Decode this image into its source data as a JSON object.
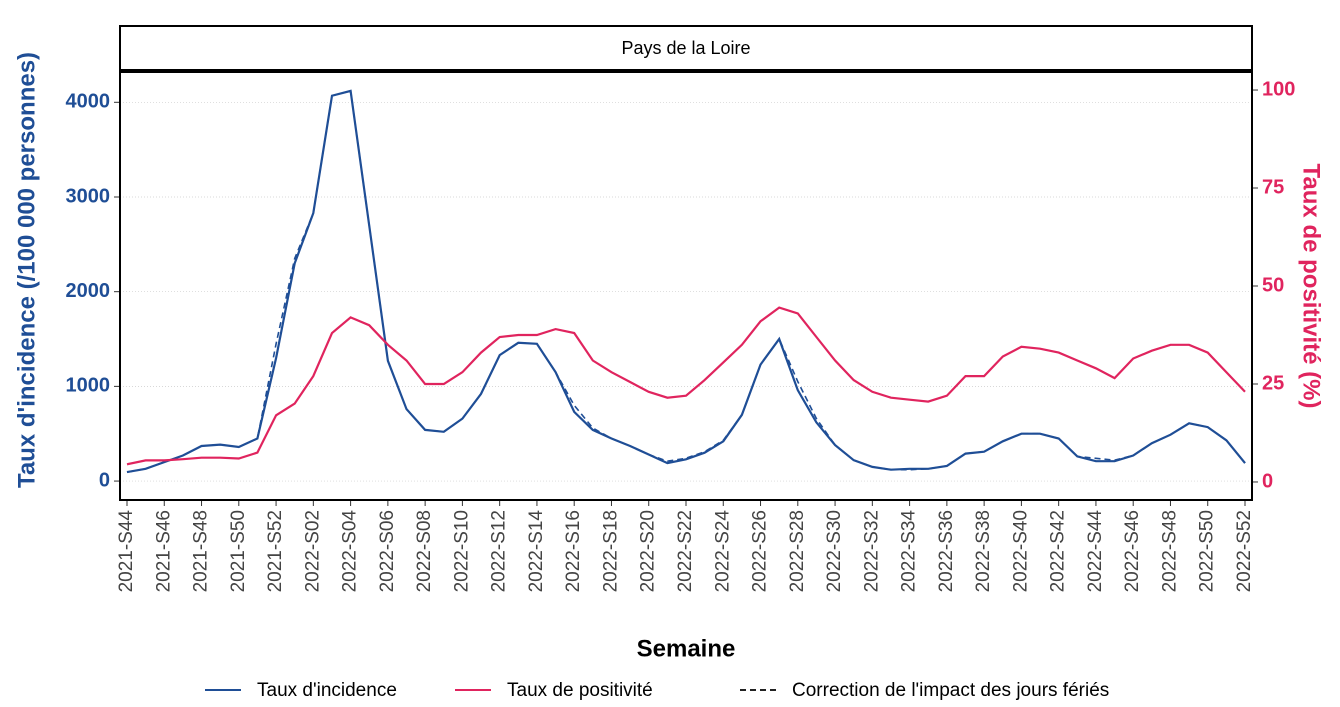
{
  "chart_data": {
    "type": "line",
    "panel_title": "Pays de la Loire",
    "x_label": "Semaine",
    "y_label": "Taux d'incidence (/100 000 personnes)",
    "y2_label": "Taux de positivité (%)",
    "categories": [
      "2021-S44",
      null,
      "2021-S46",
      null,
      "2021-S48",
      null,
      "2021-S50",
      null,
      "2021-S52",
      null,
      "2022-S02",
      null,
      "2022-S04",
      null,
      "2022-S06",
      null,
      "2022-S08",
      null,
      "2022-S10",
      null,
      "2022-S12",
      null,
      "2022-S14",
      null,
      "2022-S16",
      null,
      "2022-S18",
      null,
      "2022-S20",
      null,
      "2022-S22",
      null,
      "2022-S24",
      null,
      "2022-S26",
      null,
      "2022-S28",
      null,
      "2022-S30",
      null,
      "2022-S32",
      null,
      "2022-S34",
      null,
      "2022-S36",
      null,
      "2022-S38",
      null,
      "2022-S40",
      null,
      "2022-S42",
      null,
      "2022-S44",
      null,
      "2022-S46",
      null,
      "2022-S48",
      null,
      "2022-S50",
      null,
      "2022-S52"
    ],
    "ylim": [
      -200,
      4320
    ],
    "yticks": [
      0,
      1000,
      2000,
      3000,
      4000
    ],
    "y2lim": [
      -4.6,
      104.6
    ],
    "y2ticks": [
      0,
      25,
      50,
      75,
      100
    ],
    "grid": true,
    "series": [
      {
        "name": "Taux d'incidence",
        "color": "#1f4e96",
        "axis": "y",
        "dashed": false,
        "values": [
          95,
          130,
          200,
          270,
          370,
          385,
          360,
          450,
          1300,
          2300,
          2830,
          4070,
          4120,
          2700,
          1270,
          760,
          540,
          520,
          660,
          920,
          1330,
          1460,
          1450,
          1150,
          730,
          540,
          450,
          370,
          280,
          190,
          230,
          300,
          420,
          700,
          1230,
          1500,
          960,
          620,
          380,
          220,
          150,
          120,
          130,
          130,
          160,
          290,
          310,
          420,
          500,
          500,
          450,
          260,
          210,
          210,
          270,
          400,
          490,
          610,
          570,
          430,
          190
        ]
      },
      {
        "name": "Taux de positivité",
        "color": "#e0245e",
        "axis": "y2",
        "dashed": false,
        "values": [
          4.5,
          5.5,
          5.5,
          5.8,
          6.2,
          6.2,
          6,
          7.5,
          17,
          20,
          27,
          38,
          42,
          40,
          35,
          31,
          25,
          25,
          28,
          33,
          37,
          37.5,
          37.5,
          39,
          38,
          31,
          28,
          25.5,
          23,
          21.5,
          22,
          26,
          30.5,
          35,
          41,
          44.5,
          43,
          37,
          31,
          26,
          23,
          21.5,
          21,
          20.5,
          22,
          27,
          27,
          32,
          34.5,
          34,
          33,
          31,
          29,
          26.5,
          31.5,
          33.5,
          35,
          35,
          33,
          28,
          23
        ]
      },
      {
        "name": "Correction de l'impact des jours fériés",
        "color": "#1f4e96",
        "axis": "y",
        "dashed": true,
        "values": [
          95,
          130,
          200,
          270,
          370,
          385,
          360,
          450,
          1450,
          2350,
          2830,
          4070,
          4120,
          2700,
          1270,
          760,
          540,
          520,
          660,
          920,
          1330,
          1460,
          1450,
          1150,
          800,
          560,
          450,
          370,
          280,
          210,
          240,
          310,
          430,
          700,
          1230,
          1500,
          1050,
          660,
          380,
          220,
          150,
          120,
          120,
          130,
          160,
          290,
          310,
          420,
          500,
          500,
          450,
          260,
          240,
          220,
          270,
          400,
          490,
          610,
          570,
          430,
          190
        ]
      }
    ]
  }
}
